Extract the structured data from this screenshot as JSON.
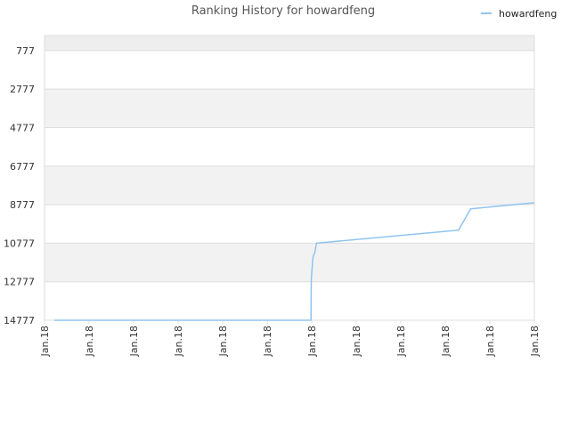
{
  "chart_data": {
    "type": "line",
    "title": "Ranking History for howardfeng",
    "xlabel": "",
    "ylabel": "",
    "y_inverted": true,
    "ylim": [
      0,
      14777
    ],
    "yticks": [
      777,
      2777,
      4777,
      6777,
      8777,
      10777,
      12777,
      14777
    ],
    "xtick_labels": [
      "Jan.18",
      "Jan.18",
      "Jan.18",
      "Jan.18",
      "Jan.18",
      "Jan.18",
      "Jan.18",
      "Jan.18",
      "Jan.18",
      "Jan.18",
      "Jan.18",
      "Jan.18"
    ],
    "x_domain": [
      0,
      100
    ],
    "legend": {
      "position": "top-right",
      "entries": [
        "howardfeng"
      ]
    },
    "grid": true,
    "colors": {
      "series": "#90c4ee",
      "band": "#f2f2f2",
      "top_band": "#eeeeee",
      "grid": "#dddddd"
    },
    "series": [
      {
        "name": "howardfeng",
        "x": [
          2,
          54.4,
          54.45,
          54.6,
          54.8,
          55.2,
          55.5,
          84.5,
          87,
          100
        ],
        "y": [
          14777,
          14777,
          12650,
          12150,
          11500,
          11250,
          10780,
          10100,
          8997,
          8677
        ]
      }
    ]
  }
}
